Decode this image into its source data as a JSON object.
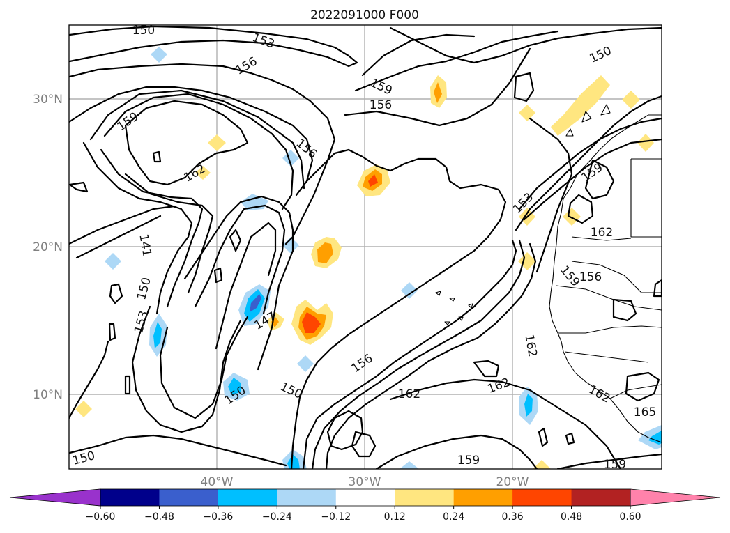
{
  "title": "2022091000 F000",
  "latitude_labels": [
    "30°N",
    "20°N",
    "10°N"
  ],
  "longitude_labels": [
    "40°W",
    "30°W",
    "20°W"
  ],
  "colorbar": {
    "ticks": [
      "−0.60",
      "−0.48",
      "−0.36",
      "−0.24",
      "−0.12",
      "0.12",
      "0.24",
      "0.36",
      "0.48",
      "0.60"
    ],
    "colors": [
      "#9932cc",
      "#00008b",
      "#3a5fcd",
      "#00bfff",
      "#add8f6",
      "#ffffff",
      "#ffe680",
      "#ff9f00",
      "#ff4500",
      "#b22222",
      "#ff82ab"
    ]
  },
  "contour_labels": [
    "150",
    "153",
    "156",
    "159",
    "156",
    "150",
    "159",
    "156",
    "162",
    "141",
    "150",
    "153",
    "147",
    "156",
    "150",
    "150",
    "153",
    "159",
    "162",
    "156",
    "159",
    "162",
    "162",
    "162",
    "162",
    "165",
    "159",
    "159",
    "150"
  ]
}
